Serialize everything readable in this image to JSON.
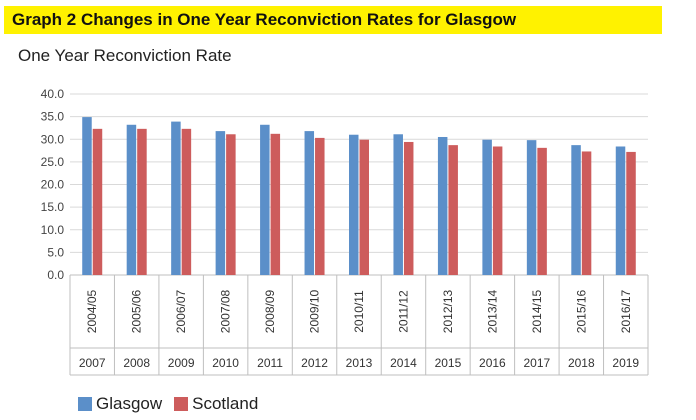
{
  "header": {
    "title": "Graph 2    Changes in One Year Reconviction Rates for Glasgow",
    "subtitle": "One Year Reconviction Rate"
  },
  "colors": {
    "title_bg": "#fff200",
    "glasgow": "#5b8fc9",
    "scotland": "#cd5c5c"
  },
  "chart_data": {
    "type": "bar",
    "title": "",
    "xlabel": "",
    "ylabel": "",
    "ylim": [
      0,
      40
    ],
    "yticks": [
      "0.0",
      "5.0",
      "10.0",
      "15.0",
      "20.0",
      "25.0",
      "30.0",
      "35.0",
      "40.0"
    ],
    "grid": true,
    "legend": "bottom-left",
    "categories": [
      "2004/05",
      "2005/06",
      "2006/07",
      "2007/08",
      "2008/09",
      "2009/10",
      "2010/11",
      "2011/12",
      "2012/13",
      "2013/14",
      "2014/15",
      "2015/16",
      "2016/17"
    ],
    "years": [
      "2007",
      "2008",
      "2009",
      "2010",
      "2011",
      "2012",
      "2013",
      "2014",
      "2015",
      "2016",
      "2017",
      "2018",
      "2019"
    ],
    "series": [
      {
        "name": "Glasgow",
        "values": [
          34.9,
          33.2,
          33.9,
          31.8,
          33.2,
          31.8,
          31.0,
          31.1,
          30.5,
          29.9,
          29.8,
          28.7,
          28.4
        ]
      },
      {
        "name": "Scotland",
        "values": [
          32.3,
          32.3,
          32.3,
          31.1,
          31.2,
          30.3,
          29.9,
          29.4,
          28.7,
          28.4,
          28.1,
          27.3,
          27.2
        ]
      }
    ]
  }
}
